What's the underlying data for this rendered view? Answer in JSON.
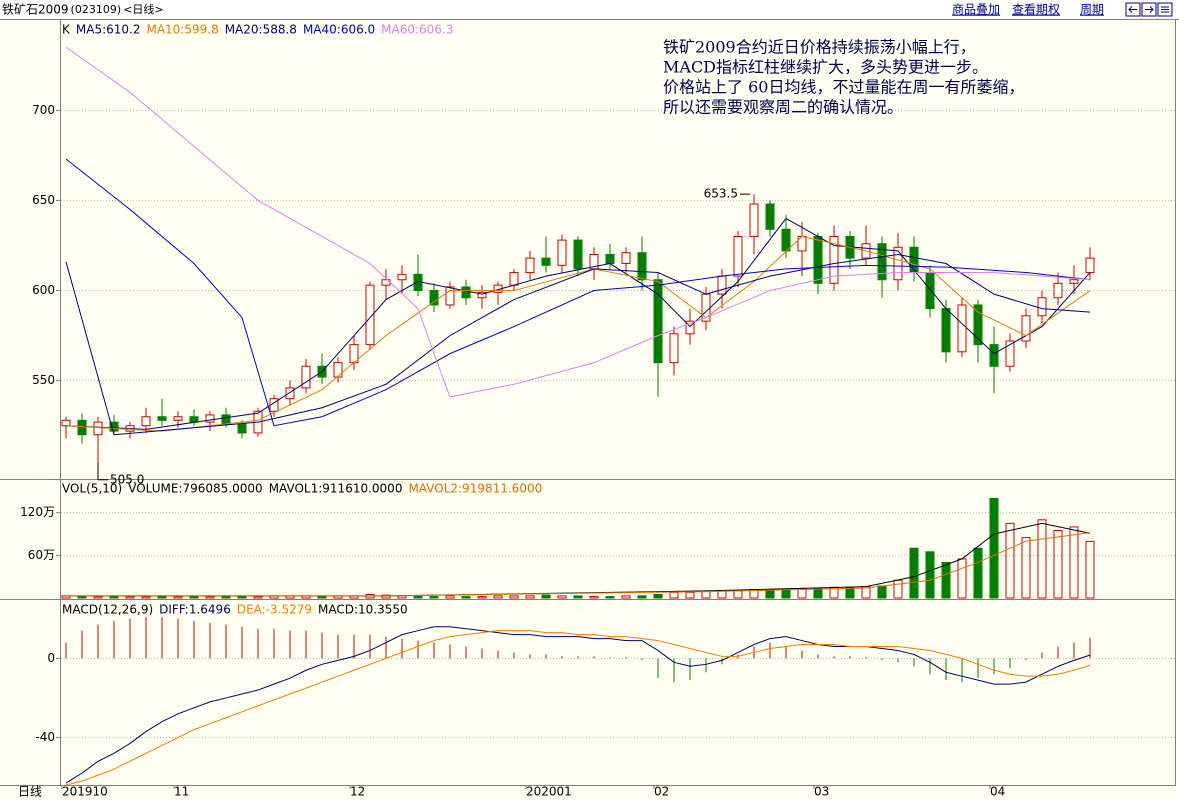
{
  "header": {
    "title": "铁矿石2009",
    "code": "(023109)",
    "period": "<日线>",
    "links": [
      "商品叠加",
      "查看期权",
      "周期"
    ]
  },
  "chart_data": {
    "type": "candlestick",
    "label": "K",
    "annotation": [
      "铁矿2009合约近日价格持续振荡小幅上行，",
      "MACD指标红柱继续扩大，多头势更进一步。",
      "价格站上了 60日均线，不过量能在周一有所萎缩，",
      "所以还需要观察周二的确认情况。"
    ],
    "x_axis_title": "日线",
    "x_labels": [
      "201910",
      "11",
      "12",
      "202001",
      "02",
      "03",
      "04"
    ],
    "x_label_index": [
      0,
      7,
      18,
      29,
      37,
      47,
      58
    ],
    "ohlc": [
      [
        525,
        530,
        518,
        528
      ],
      [
        528,
        532,
        515,
        520
      ],
      [
        520,
        530,
        505,
        527
      ],
      [
        527,
        531,
        520,
        522
      ],
      [
        522,
        527,
        518,
        525
      ],
      [
        525,
        535,
        521,
        530
      ],
      [
        530,
        540,
        525,
        528
      ],
      [
        528,
        533,
        524,
        530
      ],
      [
        530,
        534,
        525,
        527
      ],
      [
        527,
        533,
        522,
        531
      ],
      [
        531,
        535,
        524,
        526
      ],
      [
        526,
        528,
        518,
        521
      ],
      [
        521,
        535,
        519,
        533
      ],
      [
        533,
        542,
        530,
        540
      ],
      [
        540,
        550,
        536,
        546
      ],
      [
        546,
        562,
        543,
        558
      ],
      [
        558,
        565,
        548,
        552
      ],
      [
        552,
        563,
        549,
        560
      ],
      [
        560,
        575,
        556,
        570
      ],
      [
        570,
        605,
        567,
        603
      ],
      [
        603,
        612,
        595,
        606
      ],
      [
        606,
        614,
        598,
        609
      ],
      [
        609,
        620,
        597,
        600
      ],
      [
        600,
        604,
        588,
        592
      ],
      [
        592,
        605,
        590,
        602
      ],
      [
        602,
        606,
        592,
        596
      ],
      [
        596,
        603,
        590,
        599
      ],
      [
        599,
        605,
        592,
        603
      ],
      [
        603,
        612,
        600,
        610
      ],
      [
        610,
        622,
        606,
        618
      ],
      [
        618,
        630,
        610,
        614
      ],
      [
        614,
        631,
        610,
        628
      ],
      [
        628,
        630,
        608,
        612
      ],
      [
        612,
        624,
        606,
        620
      ],
      [
        620,
        626,
        612,
        615
      ],
      [
        615,
        624,
        610,
        621
      ],
      [
        621,
        630,
        600,
        606
      ],
      [
        606,
        610,
        541,
        560
      ],
      [
        560,
        580,
        553,
        576
      ],
      [
        576,
        590,
        570,
        583
      ],
      [
        583,
        602,
        578,
        598
      ],
      [
        598,
        612,
        590,
        608
      ],
      [
        608,
        633,
        602,
        630
      ],
      [
        630,
        653.5,
        620,
        648
      ],
      [
        648,
        650,
        630,
        634
      ],
      [
        634,
        642,
        618,
        622
      ],
      [
        622,
        638,
        608,
        630
      ],
      [
        630,
        632,
        598,
        604
      ],
      [
        604,
        636,
        600,
        630
      ],
      [
        630,
        633,
        612,
        618
      ],
      [
        618,
        636,
        614,
        626
      ],
      [
        626,
        630,
        596,
        606
      ],
      [
        606,
        632,
        600,
        624
      ],
      [
        624,
        630,
        605,
        610
      ],
      [
        610,
        614,
        585,
        590
      ],
      [
        590,
        595,
        560,
        566
      ],
      [
        566,
        596,
        563,
        592
      ],
      [
        592,
        595,
        560,
        570
      ],
      [
        570,
        580,
        543,
        558
      ],
      [
        558,
        576,
        555,
        572
      ],
      [
        572,
        590,
        568,
        586
      ],
      [
        586,
        600,
        582,
        596
      ],
      [
        596,
        610,
        592,
        604
      ],
      [
        604,
        614,
        598,
        606
      ],
      [
        610,
        624,
        606,
        618
      ]
    ],
    "up_color": "#d40000",
    "down_color": "#008000",
    "ylim": [
      496,
      749
    ],
    "yticks": [
      550,
      600,
      650,
      700
    ],
    "grid": true,
    "high_marker": 653.5,
    "high_index": 43,
    "low_marker": {
      "value": 505,
      "label": "505.0"
    },
    "low_index": 2,
    "ma_lines": [
      {
        "name": "MA5:610.2",
        "color": "#000060",
        "x": [
          0,
          5,
          12,
          16,
          20,
          22,
          26,
          30,
          34,
          37,
          39,
          42,
          45,
          48,
          52,
          55,
          58,
          61,
          64
        ],
        "values": [
          525,
          523,
          532,
          555,
          595,
          605,
          598,
          608,
          615,
          598,
          580,
          605,
          640,
          625,
          622,
          590,
          565,
          580,
          610
        ]
      },
      {
        "name": "MA10:599.8",
        "color": "#e08000",
        "x": [
          0,
          6,
          12,
          16,
          20,
          24,
          28,
          33,
          37,
          40,
          43,
          46,
          50,
          54,
          57,
          60,
          64
        ],
        "values": [
          525,
          522,
          528,
          545,
          575,
          600,
          600,
          612,
          605,
          585,
          605,
          630,
          622,
          612,
          588,
          575,
          600
        ]
      },
      {
        "name": "MA20:588.8",
        "color": "#000080",
        "x": [
          0,
          3,
          12,
          16,
          20,
          24,
          28,
          33,
          37,
          40,
          44,
          48,
          52,
          55,
          58,
          61,
          64
        ],
        "values": [
          616,
          520,
          527,
          535,
          548,
          575,
          595,
          612,
          610,
          598,
          608,
          615,
          620,
          615,
          598,
          590,
          588
        ]
      },
      {
        "name": "MA40:606.0",
        "color": "#0000d0",
        "x": [
          0,
          4,
          8,
          11,
          13,
          16,
          20,
          24,
          28,
          33,
          37,
          41,
          45,
          50,
          55,
          60,
          64
        ],
        "values": [
          673,
          645,
          615,
          585,
          525,
          530,
          545,
          565,
          580,
          600,
          603,
          608,
          612,
          614,
          613,
          610,
          606
        ]
      },
      {
        "name": "MA60:606.3",
        "color": "#e080f0",
        "x": [
          0,
          4,
          8,
          12,
          16,
          19,
          22,
          23,
          24,
          28,
          33,
          37,
          40,
          44,
          48,
          52,
          58,
          64
        ],
        "values": [
          735,
          710,
          680,
          650,
          630,
          615,
          590,
          565,
          541,
          548,
          560,
          575,
          585,
          600,
          608,
          610,
          610,
          606
        ]
      }
    ],
    "volume": {
      "label": "VOL(5,10)",
      "values": [
        3,
        2,
        2,
        3,
        2,
        2,
        3,
        2,
        2,
        2,
        3,
        2,
        2,
        3,
        3,
        3,
        2,
        3,
        3,
        5,
        4,
        3,
        3,
        2,
        3,
        2,
        2,
        3,
        3,
        3,
        4,
        3,
        3,
        2,
        2,
        3,
        3,
        5,
        8,
        8,
        9,
        10,
        10,
        12,
        11,
        12,
        13,
        14,
        15,
        15,
        16,
        17,
        25,
        70,
        65,
        50,
        55,
        70,
        140,
        105,
        85,
        110,
        95,
        100,
        79.6085
      ],
      "ylim": [
        0,
        166
      ],
      "yticks": [
        {
          "value": 60,
          "label": "60万"
        },
        {
          "value": 120,
          "label": "120万"
        }
      ],
      "readout": "VOLUME:796085.0000",
      "lines": [
        {
          "name": "MAVOL1:911610.0000",
          "color": "#000000",
          "x": [
            0,
            20,
            40,
            50,
            53,
            56,
            58,
            61,
            64
          ],
          "values": [
            3,
            3,
            10,
            16,
            30,
            55,
            90,
            105,
            91.161
          ]
        },
        {
          "name": "MAVOL2:919811.6000",
          "color": "#e07000",
          "x": [
            0,
            20,
            40,
            50,
            54,
            57,
            60,
            64
          ],
          "values": [
            3,
            3,
            9,
            14,
            25,
            50,
            80,
            91.98116
          ]
        }
      ]
    },
    "macd": {
      "label": "MACD(12,26,9)",
      "readout": "MACD:10.3550",
      "bars": [
        8,
        14,
        17,
        19,
        20,
        21,
        21,
        20,
        19,
        18,
        17,
        16,
        15,
        15,
        14,
        14,
        13,
        12,
        12,
        12,
        11,
        10,
        9,
        8,
        7,
        6,
        5,
        4,
        3,
        2,
        2,
        1,
        1,
        1,
        0.5,
        0.5,
        -1,
        -10,
        -12,
        -11,
        -7,
        -3,
        2,
        6,
        8,
        6,
        4,
        2,
        1,
        1,
        0.5,
        -1,
        -2,
        -4,
        -8,
        -11,
        -12,
        -10,
        -8,
        -5,
        -1,
        3,
        6,
        8,
        10.355
      ],
      "ylim": [
        -64,
        29
      ],
      "yticks": [
        -40,
        0
      ],
      "lines": [
        {
          "name": "DIFF:1.6496",
          "color": "#000060",
          "values": [
            -63,
            -58,
            -52,
            -48,
            -43,
            -37,
            -32,
            -28,
            -25,
            -22,
            -20,
            -18,
            -16,
            -13,
            -10,
            -6,
            -3,
            -1,
            1,
            4,
            8,
            12,
            14,
            16,
            16,
            15,
            14,
            13,
            12,
            12,
            11,
            11,
            11,
            10,
            10,
            9,
            9,
            4,
            -2,
            -4,
            -3,
            -1,
            3,
            7,
            10,
            11,
            9,
            7,
            6,
            6,
            6,
            5,
            4,
            2,
            -2,
            -7,
            -9,
            -11,
            -13,
            -13,
            -12,
            -8,
            -4,
            -1,
            1.6496
          ]
        },
        {
          "name": "DEA:-3.5279",
          "color": "#f08000",
          "values": [
            -64,
            -62,
            -59,
            -56,
            -52,
            -48,
            -44,
            -40,
            -36,
            -33,
            -30,
            -27,
            -24,
            -21,
            -18,
            -15,
            -12,
            -9,
            -6,
            -3,
            0,
            3,
            6,
            9,
            11,
            12,
            13,
            14,
            14,
            14,
            13,
            13,
            12,
            12,
            11,
            11,
            10,
            9,
            7,
            5,
            3,
            1,
            1,
            3,
            5,
            6,
            7,
            7,
            7,
            6,
            6,
            6,
            6,
            5,
            4,
            2,
            0,
            -3,
            -6,
            -8,
            -9,
            -9,
            -8,
            -6,
            -3.5279
          ]
        }
      ]
    }
  }
}
